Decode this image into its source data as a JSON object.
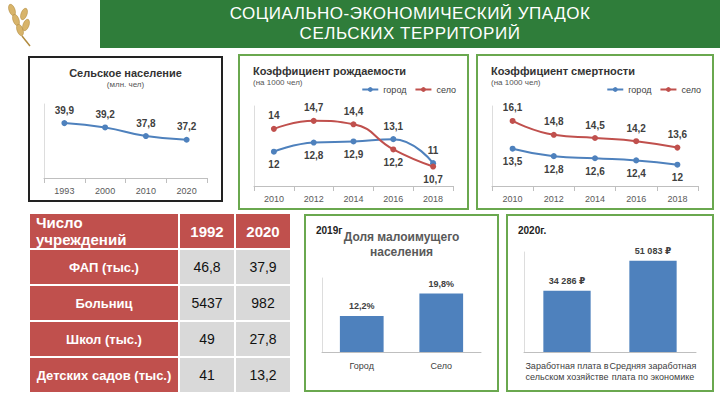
{
  "header": {
    "title": [
      "СОЦИАЛЬНО-ЭКОНОМИЧЕСКИЙ УПАДОК",
      "СЕЛЬСКИХ ТЕРРИТОРИЙ"
    ]
  },
  "chart_data": [
    {
      "type": "line",
      "title": "Сельское население",
      "subtitle": "(млн. чел)",
      "categories": [
        "1993",
        "2000",
        "2010",
        "2020"
      ],
      "values": [
        39.9,
        39.2,
        37.8,
        37.2
      ],
      "value_labels": [
        "39,9",
        "39,2",
        "37,8",
        "37,2"
      ],
      "color": "#4e81bd",
      "ylim": [
        31,
        43
      ],
      "data_labels": true,
      "marker": "circle",
      "grid": false,
      "tick_labels": "x"
    },
    {
      "type": "line",
      "title": "Коэффициент рождаемости",
      "subtitle": "(на 1000 чел)",
      "categories": [
        "2010",
        "2012",
        "2014",
        "2016",
        "2018"
      ],
      "series": [
        {
          "name": "город",
          "color": "#4e81bd",
          "values": [
            12,
            12.8,
            12.9,
            13.1,
            11
          ],
          "value_labels": [
            "12",
            "12,8",
            "12,9",
            "13,1",
            "11"
          ]
        },
        {
          "name": "село",
          "color": "#c0504d",
          "values": [
            14,
            14.7,
            14.4,
            12.2,
            10.7
          ],
          "value_labels": [
            "14",
            "14,7",
            "14,4",
            "12,2",
            "10,7"
          ]
        }
      ],
      "ylim": [
        9,
        16
      ],
      "legend": "top-right",
      "data_labels": true,
      "marker": "circle",
      "grid": false,
      "tick_labels": "x"
    },
    {
      "type": "line",
      "title": "Коэффициент смертности",
      "subtitle": "(на 1000 чел)",
      "categories": [
        "2010",
        "2012",
        "2014",
        "2016",
        "2018"
      ],
      "series": [
        {
          "name": "город",
          "color": "#4e81bd",
          "values": [
            13.5,
            12.8,
            12.6,
            12.4,
            12
          ],
          "value_labels": [
            "13,5",
            "12,8",
            "12,6",
            "12,4",
            "12"
          ]
        },
        {
          "name": "село",
          "color": "#c0504d",
          "values": [
            16.1,
            14.8,
            14.5,
            14.2,
            13.6
          ],
          "value_labels": [
            "16,1",
            "14,8",
            "14,5",
            "14,2",
            "13,6"
          ]
        }
      ],
      "ylim": [
        10,
        17.5
      ],
      "legend": "top-right",
      "data_labels": true,
      "marker": "circle",
      "grid": false,
      "tick_labels": "x"
    },
    {
      "type": "bar",
      "annotation": "2019г",
      "title": "Доля малоимущего\nнаселения",
      "categories": [
        "Город",
        "Село"
      ],
      "values": [
        12.2,
        19.8
      ],
      "value_labels": [
        "12,2%",
        "19,8%"
      ],
      "color": "#4e81bd",
      "ylim": [
        0,
        25
      ],
      "data_labels": true,
      "grid": false,
      "tick_labels": "x"
    },
    {
      "type": "bar",
      "annotation": "2020г.",
      "categories": [
        "Заработная плата в\nсельском хозяйстве",
        "Средняя заработная\nплата по экономике"
      ],
      "values": [
        34286,
        51083
      ],
      "value_labels": [
        "34 286 ₽",
        "51 083 ₽"
      ],
      "color": "#4e81bd",
      "ylim": [
        0,
        56000
      ],
      "data_labels": true,
      "grid": false,
      "tick_labels": "x"
    }
  ],
  "table": {
    "header": [
      "Число учреждений",
      "1992",
      "2020"
    ],
    "rows": [
      [
        "ФАП (тыс.)",
        "46,8",
        "37,9"
      ],
      [
        "Больниц",
        "5437",
        "982"
      ],
      [
        "Школ (тыс.)",
        "49",
        "27,8"
      ],
      [
        "Детских садов (тыс.)",
        "41",
        "13,2"
      ]
    ]
  }
}
